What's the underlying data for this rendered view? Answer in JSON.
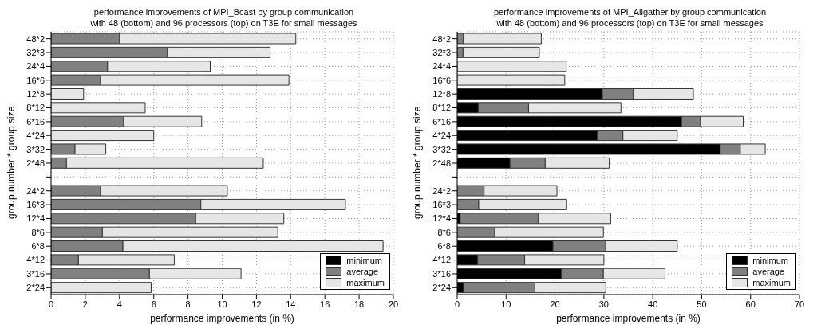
{
  "chart_data": [
    {
      "type": "bar",
      "orientation": "horizontal",
      "stacked": true,
      "title": "performance improvements of MPI_Bcast by group communication\nwith 48 (bottom) and 96 processors (top) on T3E for small messages",
      "xlabel": "performance improvements (in %)",
      "ylabel": "group number * group size",
      "categories": [
        "48*2",
        "32*3",
        "24*4",
        "16*6",
        "12*8",
        "8*12",
        "6*16",
        "4*24",
        "3*32",
        "2*48",
        null,
        "24*2",
        "16*3",
        "12*4",
        "8*6",
        "6*8",
        "4*12",
        "3*16",
        "2*24"
      ],
      "series": [
        {
          "name": "minimum",
          "color": "#000000",
          "values": [
            0,
            0,
            0,
            0,
            0,
            0,
            0,
            0,
            0,
            0,
            null,
            0,
            0,
            0,
            0,
            0,
            0,
            0,
            0
          ]
        },
        {
          "name": "average",
          "color": "#808080",
          "values": [
            4.0,
            6.8,
            3.3,
            2.9,
            0,
            0,
            4.25,
            0,
            1.4,
            0.9,
            null,
            2.9,
            8.75,
            8.45,
            3.0,
            4.2,
            1.6,
            5.75,
            0
          ]
        },
        {
          "name": "maximum",
          "color": "#e6e6e6",
          "values": [
            10.3,
            6.0,
            6.0,
            11.0,
            1.9,
            5.5,
            4.55,
            6.0,
            1.8,
            11.5,
            null,
            7.4,
            8.45,
            5.15,
            10.25,
            15.2,
            5.6,
            5.35,
            5.85
          ]
        }
      ],
      "xlim": [
        0,
        20
      ],
      "xticks": [
        0,
        2,
        4,
        6,
        8,
        10,
        12,
        14,
        16,
        18,
        20
      ],
      "grid": true,
      "legend": "bottom right"
    },
    {
      "type": "bar",
      "orientation": "horizontal",
      "stacked": true,
      "title": "performance improvements of MPI_Allgather by group communication\nwith 48 (bottom) and 96 processors (top) on T3E for small messages",
      "xlabel": "performance improvements (in %)",
      "ylabel": "group number * group size",
      "categories": [
        "48*2",
        "32*3",
        "24*4",
        "16*6",
        "12*8",
        "8*12",
        "6*16",
        "4*24",
        "3*32",
        "2*48",
        null,
        "24*2",
        "16*3",
        "12*4",
        "8*6",
        "6*8",
        "4*12",
        "3*16",
        "2*24"
      ],
      "series": [
        {
          "name": "minimum",
          "color": "#000000",
          "values": [
            0,
            0,
            0,
            0,
            29.7,
            4.3,
            45.9,
            28.7,
            53.8,
            10.8,
            null,
            0,
            0,
            0.6,
            0,
            19.6,
            4.2,
            21.3,
            1.3
          ]
        },
        {
          "name": "average",
          "color": "#808080",
          "values": [
            1.3,
            1.2,
            0,
            0,
            6.3,
            10.3,
            3.9,
            5.2,
            4.1,
            7.2,
            null,
            5.5,
            4.4,
            16.0,
            7.7,
            10.8,
            9.6,
            8.6,
            14.6
          ]
        },
        {
          "name": "maximum",
          "color": "#e6e6e6",
          "values": [
            15.9,
            15.6,
            22.3,
            22.0,
            12.3,
            18.9,
            8.7,
            11.1,
            5.1,
            13.1,
            null,
            14.9,
            18.0,
            14.8,
            22.2,
            14.6,
            16.2,
            12.6,
            14.5
          ]
        }
      ],
      "xlim": [
        0,
        70
      ],
      "xticks": [
        0,
        10,
        20,
        30,
        40,
        50,
        60,
        70
      ],
      "grid": true,
      "legend": "bottom right"
    }
  ]
}
